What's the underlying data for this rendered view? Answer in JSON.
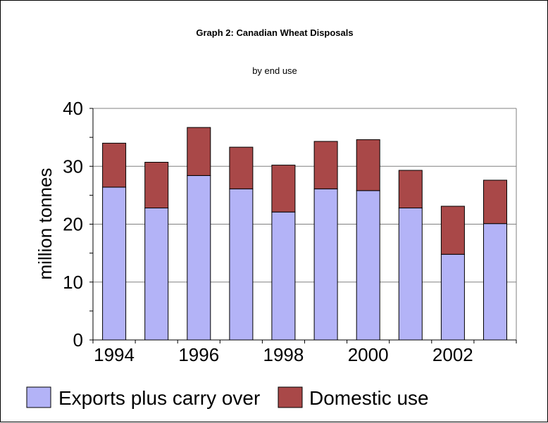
{
  "chart_data": {
    "type": "bar",
    "stacked": true,
    "title": "Graph 2: Canadian Wheat Disposals",
    "subtitle": "by end use",
    "xlabel": "",
    "ylabel": "million tonnes",
    "ylim": [
      0,
      40
    ],
    "yticks": [
      "0",
      "10",
      "20",
      "30",
      "40"
    ],
    "categories": [
      "1994",
      "1995",
      "1996",
      "1997",
      "1998",
      "1999",
      "2000",
      "2001",
      "2002",
      "2003"
    ],
    "xtick_labels": [
      "1994",
      "",
      "1996",
      "",
      "1998",
      "",
      "2000",
      "",
      "2002",
      ""
    ],
    "grid": true,
    "legend_position": "bottom",
    "series": [
      {
        "name": "Exports plus carry over",
        "color": "#b3b3f7",
        "values": [
          26.4,
          22.8,
          28.4,
          26.1,
          22.1,
          26.1,
          25.8,
          22.8,
          14.8,
          20.1
        ]
      },
      {
        "name": "Domestic use",
        "color": "#a94848",
        "values": [
          7.6,
          7.9,
          8.3,
          7.2,
          8.1,
          8.2,
          8.8,
          6.5,
          8.3,
          7.5
        ]
      }
    ]
  }
}
